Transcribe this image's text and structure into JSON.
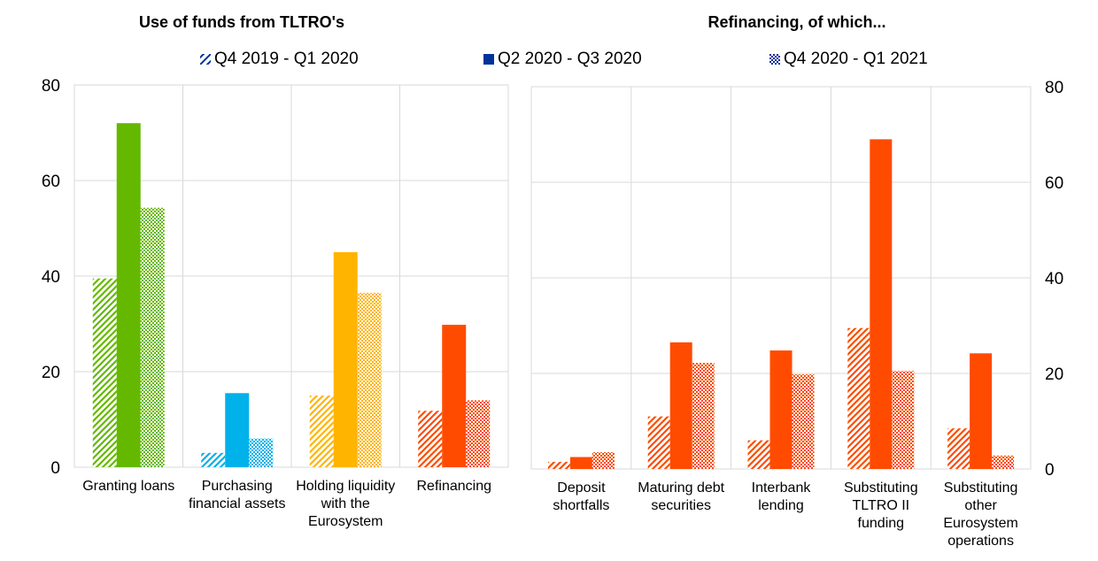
{
  "legend": [
    {
      "label": "Q4 2019 - Q1 2020",
      "pattern": "hatch"
    },
    {
      "label": "Q2 2020 - Q3 2020",
      "pattern": "solid"
    },
    {
      "label": "Q4 2020 - Q1 2021",
      "pattern": "dots"
    }
  ],
  "colors": {
    "legend_swatch": "#003299",
    "green": "#65b800",
    "blue": "#00b1ea",
    "yellow": "#ffb400",
    "orange": "#ff4b00",
    "grid": "#d9d9d9",
    "axis": "#bfbfbf"
  },
  "chart_data": [
    {
      "type": "bar",
      "title": "Use of funds from TLTRO's",
      "categories": [
        "Granting loans",
        "Purchasing financial assets",
        "Holding liquidity with the Eurosystem",
        "Refinancing"
      ],
      "category_lines": [
        [
          "Granting loans"
        ],
        [
          "Purchasing",
          "financial assets"
        ],
        [
          "Holding liquidity",
          "with the",
          "Eurosystem"
        ],
        [
          "Refinancing"
        ]
      ],
      "category_colors": [
        "#65b800",
        "#00b1ea",
        "#ffb400",
        "#ff4b00"
      ],
      "series": [
        {
          "name": "Q4 2019 - Q1 2020",
          "pattern": "hatch",
          "values": [
            39.5,
            3,
            15,
            11.8
          ]
        },
        {
          "name": "Q2 2020 - Q3 2020",
          "pattern": "solid",
          "values": [
            72,
            15.5,
            45,
            29.8
          ]
        },
        {
          "name": "Q4 2020 - Q1 2021",
          "pattern": "dots",
          "values": [
            54.3,
            6,
            36.5,
            14
          ]
        }
      ],
      "ylim": [
        0,
        80
      ],
      "yticks": [
        0,
        20,
        40,
        60,
        80
      ],
      "y_axis_side": "left",
      "xlabel": "",
      "ylabel": "",
      "grid": true
    },
    {
      "type": "bar",
      "title": "Refinancing, of which...",
      "categories": [
        "Deposit shortfalls",
        "Maturing debt securities",
        "Interbank lending",
        "Substituting TLTRO II funding",
        "Substituting other Eurosystem operations"
      ],
      "category_lines": [
        [
          "Deposit",
          "shortfalls"
        ],
        [
          "Maturing debt",
          "securities"
        ],
        [
          "Interbank",
          "lending"
        ],
        [
          "Substituting",
          "TLTRO II",
          "funding"
        ],
        [
          "Substituting",
          "other",
          "Eurosystem",
          "operations"
        ]
      ],
      "category_colors": [
        "#ff4b00",
        "#ff4b00",
        "#ff4b00",
        "#ff4b00",
        "#ff4b00"
      ],
      "series": [
        {
          "name": "Q4 2019 - Q1 2020",
          "pattern": "hatch",
          "values": [
            1.5,
            11,
            6,
            29.5,
            8.5
          ]
        },
        {
          "name": "Q2 2020 - Q3 2020",
          "pattern": "solid",
          "values": [
            2.5,
            26.5,
            24.8,
            69,
            24.2
          ]
        },
        {
          "name": "Q4 2020 - Q1 2021",
          "pattern": "dots",
          "values": [
            3.5,
            22.2,
            19.8,
            20.5,
            2.8
          ]
        }
      ],
      "ylim": [
        0,
        80
      ],
      "yticks": [
        0,
        20,
        40,
        60,
        80
      ],
      "y_axis_side": "right",
      "xlabel": "",
      "ylabel": "",
      "grid": true
    }
  ]
}
